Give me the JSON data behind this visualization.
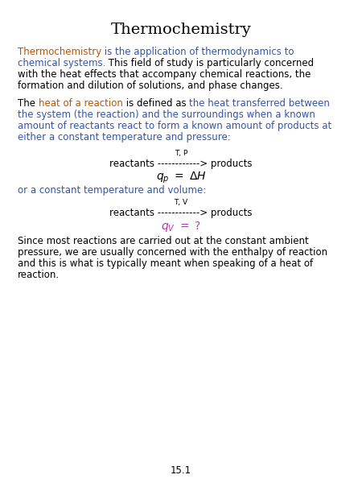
{
  "title": "Thermochemistry",
  "title_fontsize": 14,
  "title_color": "#000000",
  "background_color": "#ffffff",
  "page_number": "15.1",
  "font_size_body": 8.5,
  "font_size_small": 6.5,
  "font_size_equation": 10,
  "color_blue": "#3355aa",
  "color_orange": "#bb5500",
  "color_black": "#000000",
  "color_magenta": "#bb33bb",
  "para1_lines": [
    [
      [
        "Thermochemistry",
        "#bb5500"
      ],
      [
        " is the application of thermodynamics to",
        "#3355aa"
      ]
    ],
    [
      [
        "chemical systems.",
        "#3355aa"
      ],
      [
        " This field of study is particularly concerned",
        "#000000"
      ]
    ],
    [
      [
        "with the heat effects that accompany chemical reactions, the",
        "#000000"
      ]
    ],
    [
      [
        "formation and dilution of solutions, and phase changes.",
        "#000000"
      ]
    ]
  ],
  "para2_lines": [
    [
      [
        "The ",
        "#000000"
      ],
      [
        "heat of a reaction",
        "#bb5500"
      ],
      [
        " is defined as ",
        "#000000"
      ],
      [
        "the heat transferred between",
        "#3355aa"
      ]
    ],
    [
      [
        "the system (the reaction) and the surroundings when a known",
        "#3355aa"
      ]
    ],
    [
      [
        "amount of reactants react to form a known amount of products at",
        "#3355aa"
      ]
    ],
    [
      [
        "either a constant temperature and pressure:",
        "#3355aa"
      ]
    ]
  ],
  "tp_label": "T, P",
  "reaction1": "reactants ------------> products",
  "tv_label": "T, V",
  "reaction2": "reactants ------------> products",
  "or_line": "or a constant temperature and volume:",
  "para3_lines": [
    "Since most reactions are carried out at the constant ambient",
    "pressure, we are usually concerned with the enthalpy of reaction",
    "and this is what is typically meant when speaking of a heat of",
    "reaction."
  ]
}
